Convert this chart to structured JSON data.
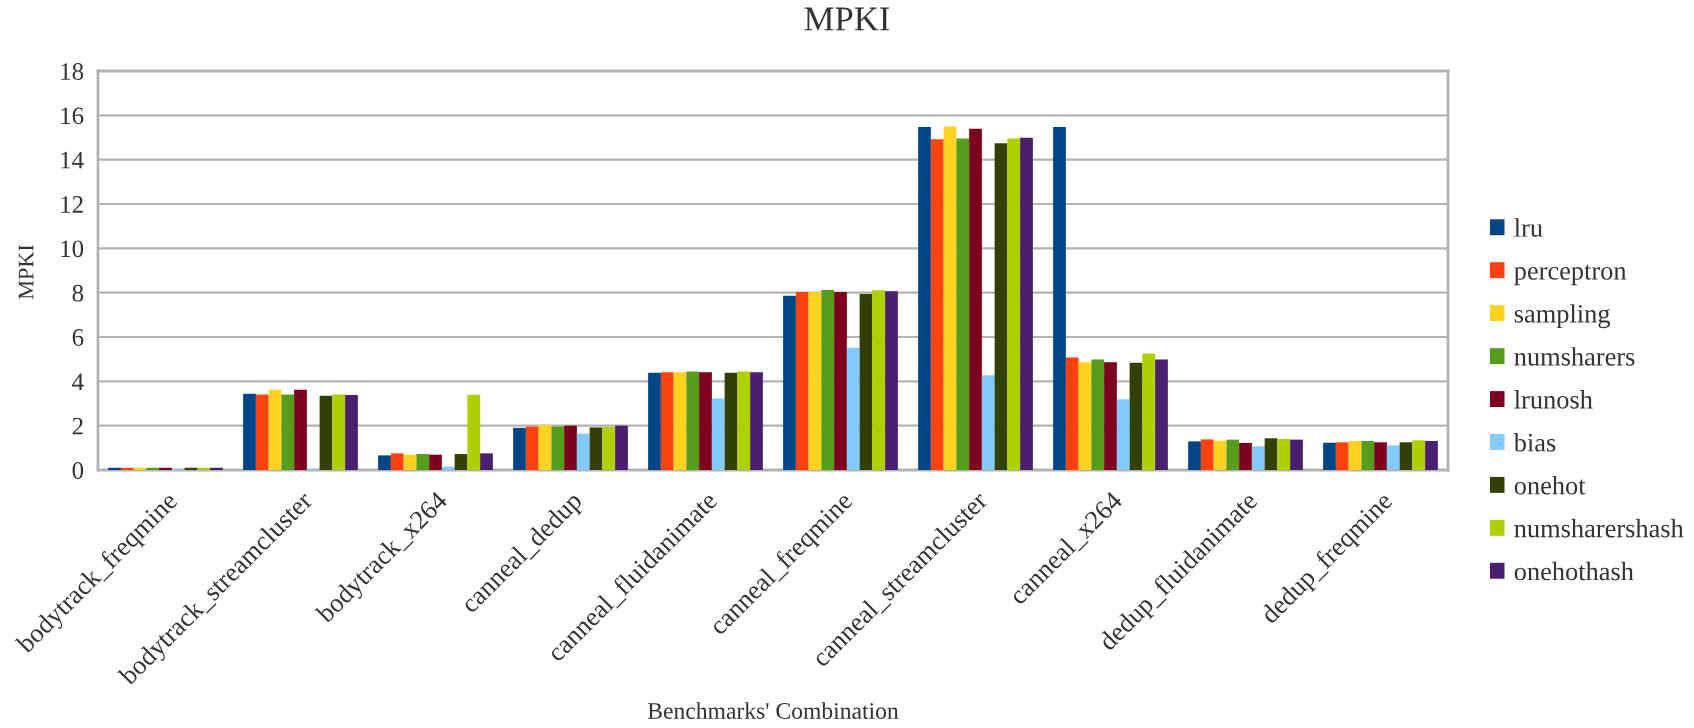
{
  "chart_data": {
    "type": "bar",
    "title": "MPKI",
    "xlabel": "Benchmarks' Combination",
    "ylabel": "MPKI",
    "categories": [
      "bodytrack_freqmine",
      "bodytrack_streamcluster",
      "bodytrack_x264",
      "canneal_dedup",
      "canneal_fluidanimate",
      "canneal_freqmine",
      "canneal_streamcluster",
      "canneal_x264",
      "dedup_fluidanimate",
      "dedup_freqmine"
    ],
    "series": [
      {
        "name": "lru",
        "color": "#004586",
        "values": [
          0.1,
          3.44,
          0.66,
          1.9,
          4.39,
          7.86,
          15.47,
          15.47,
          1.29,
          1.23
        ]
      },
      {
        "name": "perceptron",
        "color": "#ff420e",
        "values": [
          0.1,
          3.41,
          0.75,
          1.96,
          4.41,
          8.03,
          14.92,
          5.08,
          1.38,
          1.25
        ]
      },
      {
        "name": "sampling",
        "color": "#ffd320",
        "values": [
          0.1,
          3.62,
          0.69,
          2.04,
          4.41,
          8.03,
          15.5,
          4.86,
          1.32,
          1.31
        ]
      },
      {
        "name": "numsharers",
        "color": "#579d1c",
        "values": [
          0.1,
          3.41,
          0.72,
          1.96,
          4.44,
          8.12,
          14.95,
          4.98,
          1.37,
          1.31
        ]
      },
      {
        "name": "lrunosh",
        "color": "#7e0021",
        "values": [
          0.1,
          3.62,
          0.69,
          2.0,
          4.41,
          8.03,
          15.4,
          4.86,
          1.22,
          1.25
        ]
      },
      {
        "name": "bias",
        "color": "#83caff",
        "values": [
          0.05,
          0.05,
          0.15,
          1.64,
          3.23,
          5.52,
          4.27,
          3.19,
          1.07,
          1.11
        ]
      },
      {
        "name": "onehot",
        "color": "#314004",
        "values": [
          0.1,
          3.35,
          0.72,
          1.92,
          4.39,
          7.94,
          14.74,
          4.84,
          1.43,
          1.25
        ]
      },
      {
        "name": "numsharershash",
        "color": "#aecf00",
        "values": [
          0.1,
          3.41,
          3.4,
          1.95,
          4.44,
          8.11,
          14.96,
          5.26,
          1.4,
          1.34
        ]
      },
      {
        "name": "onehothash",
        "color": "#4b1f6f",
        "values": [
          0.1,
          3.38,
          0.75,
          2.0,
          4.41,
          8.06,
          14.99,
          4.98,
          1.37,
          1.31
        ]
      }
    ],
    "ylim": [
      0,
      18
    ],
    "yticks": [
      0,
      2,
      4,
      6,
      8,
      10,
      12,
      14,
      16,
      18
    ],
    "grid": "y",
    "legend": "right"
  }
}
